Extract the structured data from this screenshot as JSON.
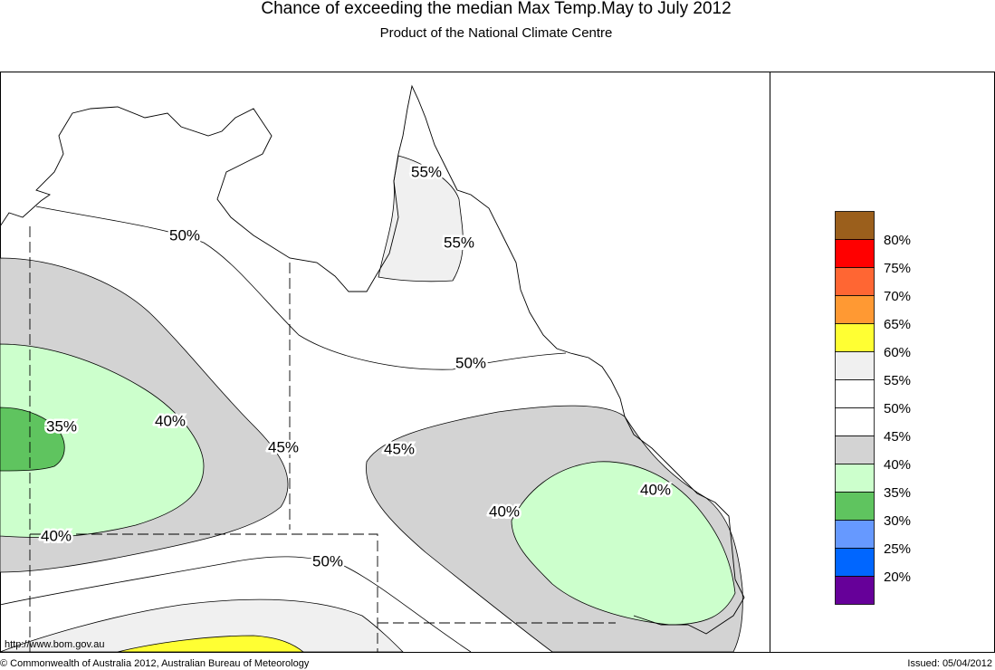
{
  "header": {
    "title": "Chance of exceeding the median Max Temp.May to July 2012",
    "subtitle": "Product of the National Climate Centre"
  },
  "map": {
    "contour_labels": [
      "55%",
      "55%",
      "50%",
      "50%",
      "50%",
      "45%",
      "45%",
      "40%",
      "40%",
      "40%",
      "40%",
      "35%"
    ]
  },
  "legend": {
    "colors": [
      "#9b5f1c",
      "#ff0000",
      "#ff6633",
      "#ff9933",
      "#ffff33",
      "#f0f0f0",
      "#ffffff",
      "#ffffff",
      "#d3d3d3",
      "#ccffcc",
      "#5fc45f",
      "#6699ff",
      "#0066ff",
      "#660099"
    ],
    "labels": [
      "80%",
      "75%",
      "70%",
      "65%",
      "60%",
      "55%",
      "50%",
      "45%",
      "40%",
      "35%",
      "30%",
      "25%",
      "20%"
    ]
  },
  "footer": {
    "url": "http://www.bom.gov.au",
    "copyright": "© Commonwealth of Australia 2012, Australian Bureau of Meteorology",
    "issued": "Issued: 05/04/2012"
  }
}
